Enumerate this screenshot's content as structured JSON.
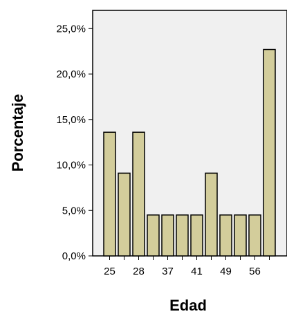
{
  "chart_data": {
    "type": "bar",
    "xlabel": "Edad",
    "ylabel": "Porcentaje",
    "ylim": [
      0,
      27
    ],
    "yticks": [
      "0,0%",
      "5,0%",
      "10,0%",
      "15,0%",
      "20,0%",
      "25,0%"
    ],
    "ytick_values": [
      0,
      5,
      10,
      15,
      20,
      25
    ],
    "categories": [
      "25",
      "",
      "28",
      "",
      "37",
      "",
      "41",
      "",
      "49",
      "",
      "56",
      ""
    ],
    "values": [
      13.6,
      9.1,
      13.6,
      4.5,
      4.5,
      4.5,
      4.5,
      9.1,
      4.5,
      4.5,
      4.5,
      22.7
    ],
    "grid": false,
    "legend": "none",
    "colors": {
      "bar_fill": "#d3cd9b",
      "bar_stroke": "#000000",
      "plot_background": "#f0f0f0",
      "axis": "#000000"
    }
  }
}
